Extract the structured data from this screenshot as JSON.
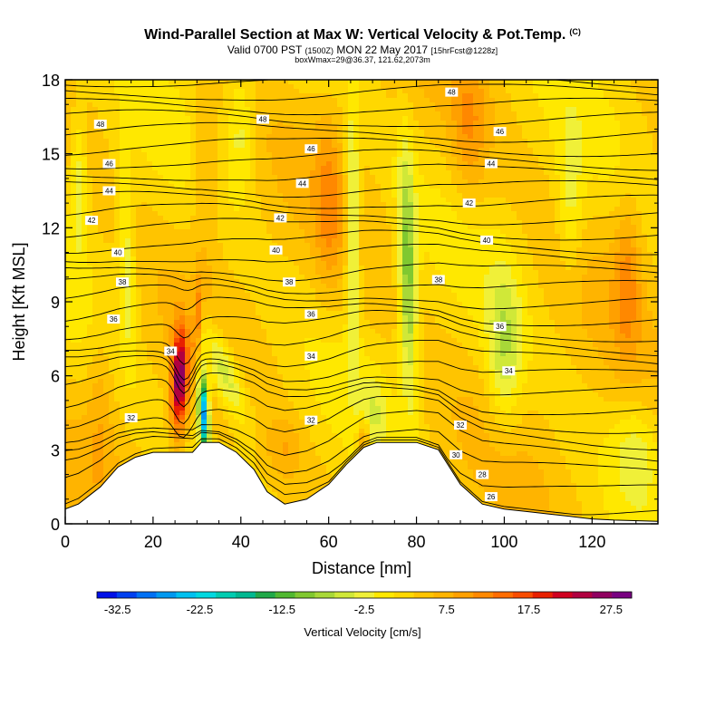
{
  "header": {
    "title": "Wind-Parallel Section at Max W: Vertical Velocity & Pot.Temp.",
    "title_mark": "(C)",
    "valid_prefix": "Valid 0700 PST",
    "valid_utc": "(1500Z)",
    "valid_date": "MON 22 May 2017",
    "forecast": "[15hrFcst@1228z]",
    "box_info": "boxWmax=29@36.37, 121.62,2073m"
  },
  "chart_data": {
    "type": "heatmap",
    "xlabel": "Distance [nm]",
    "ylabel": "Height [Kft MSL]",
    "xlim": [
      0,
      135
    ],
    "ylim": [
      0,
      18
    ],
    "xticks": [
      "0",
      "20",
      "40",
      "60",
      "80",
      "100",
      "120"
    ],
    "yticks": [
      "0",
      "3",
      "6",
      "9",
      "12",
      "15",
      "18"
    ],
    "colorbar": {
      "label": "Vertical Velocity [cm/s]",
      "range": [
        -35,
        30
      ],
      "step": 2.5,
      "tick_labels": [
        "-32.5",
        "-22.5",
        "-12.5",
        "-2.5",
        "7.5",
        "17.5",
        "27.5"
      ],
      "tick_values": [
        -32.5,
        -22.5,
        -12.5,
        -2.5,
        7.5,
        17.5,
        27.5
      ],
      "colors": [
        "#0010e8",
        "#0040f0",
        "#0070f4",
        "#0098f0",
        "#00c0f0",
        "#00d8e0",
        "#00ccb0",
        "#00b890",
        "#20a848",
        "#50b830",
        "#80c830",
        "#a8d838",
        "#d0e838",
        "#f0f038",
        "#ffe800",
        "#ffd800",
        "#ffc400",
        "#ffb400",
        "#ffa000",
        "#ff8800",
        "#ff6c00",
        "#f84c00",
        "#e82000",
        "#d00020",
        "#b00040",
        "#900060",
        "#780080"
      ]
    },
    "terrain": [
      [
        0,
        0.6
      ],
      [
        3,
        0.8
      ],
      [
        8,
        1.5
      ],
      [
        12,
        2.3
      ],
      [
        16,
        2.7
      ],
      [
        20,
        2.9
      ],
      [
        26,
        2.9
      ],
      [
        29,
        2.9
      ],
      [
        31,
        3.3
      ],
      [
        35,
        3.3
      ],
      [
        39,
        2.9
      ],
      [
        43,
        2.2
      ],
      [
        46,
        1.3
      ],
      [
        50,
        0.8
      ],
      [
        55,
        1.0
      ],
      [
        60,
        1.6
      ],
      [
        64,
        2.4
      ],
      [
        68,
        3.1
      ],
      [
        71,
        3.3
      ],
      [
        80,
        3.3
      ],
      [
        85,
        3.0
      ],
      [
        90,
        1.6
      ],
      [
        95,
        0.8
      ],
      [
        100,
        0.6
      ],
      [
        105,
        0.5
      ],
      [
        110,
        0.4
      ],
      [
        115,
        0.3
      ],
      [
        120,
        0.2
      ],
      [
        125,
        0.15
      ],
      [
        135,
        0.1
      ]
    ],
    "isentrope_labels": [
      {
        "x": 8,
        "y": 16.2,
        "text": "48"
      },
      {
        "x": 45,
        "y": 16.4,
        "text": "48"
      },
      {
        "x": 88,
        "y": 17.5,
        "text": "48"
      },
      {
        "x": 10,
        "y": 14.6,
        "text": "46"
      },
      {
        "x": 56,
        "y": 15.2,
        "text": "46"
      },
      {
        "x": 99,
        "y": 15.9,
        "text": "46"
      },
      {
        "x": 10,
        "y": 13.5,
        "text": "44"
      },
      {
        "x": 54,
        "y": 13.8,
        "text": "44"
      },
      {
        "x": 97,
        "y": 14.6,
        "text": "44"
      },
      {
        "x": 6,
        "y": 12.3,
        "text": "42"
      },
      {
        "x": 49,
        "y": 12.4,
        "text": "42"
      },
      {
        "x": 92,
        "y": 13.0,
        "text": "42"
      },
      {
        "x": 12,
        "y": 11.0,
        "text": "40"
      },
      {
        "x": 48,
        "y": 11.1,
        "text": "40"
      },
      {
        "x": 96,
        "y": 11.5,
        "text": "40"
      },
      {
        "x": 13,
        "y": 9.8,
        "text": "38"
      },
      {
        "x": 51,
        "y": 9.8,
        "text": "38"
      },
      {
        "x": 85,
        "y": 9.9,
        "text": "38"
      },
      {
        "x": 11,
        "y": 8.3,
        "text": "36"
      },
      {
        "x": 56,
        "y": 8.5,
        "text": "36"
      },
      {
        "x": 99,
        "y": 8.0,
        "text": "36"
      },
      {
        "x": 24,
        "y": 7.0,
        "text": "34"
      },
      {
        "x": 56,
        "y": 6.8,
        "text": "34"
      },
      {
        "x": 101,
        "y": 6.2,
        "text": "34"
      },
      {
        "x": 15,
        "y": 4.3,
        "text": "32"
      },
      {
        "x": 56,
        "y": 4.2,
        "text": "32"
      },
      {
        "x": 90,
        "y": 4.0,
        "text": "32"
      },
      {
        "x": 89,
        "y": 2.8,
        "text": "30"
      },
      {
        "x": 95,
        "y": 2.0,
        "text": "28"
      },
      {
        "x": 97,
        "y": 1.1,
        "text": "26"
      }
    ]
  }
}
